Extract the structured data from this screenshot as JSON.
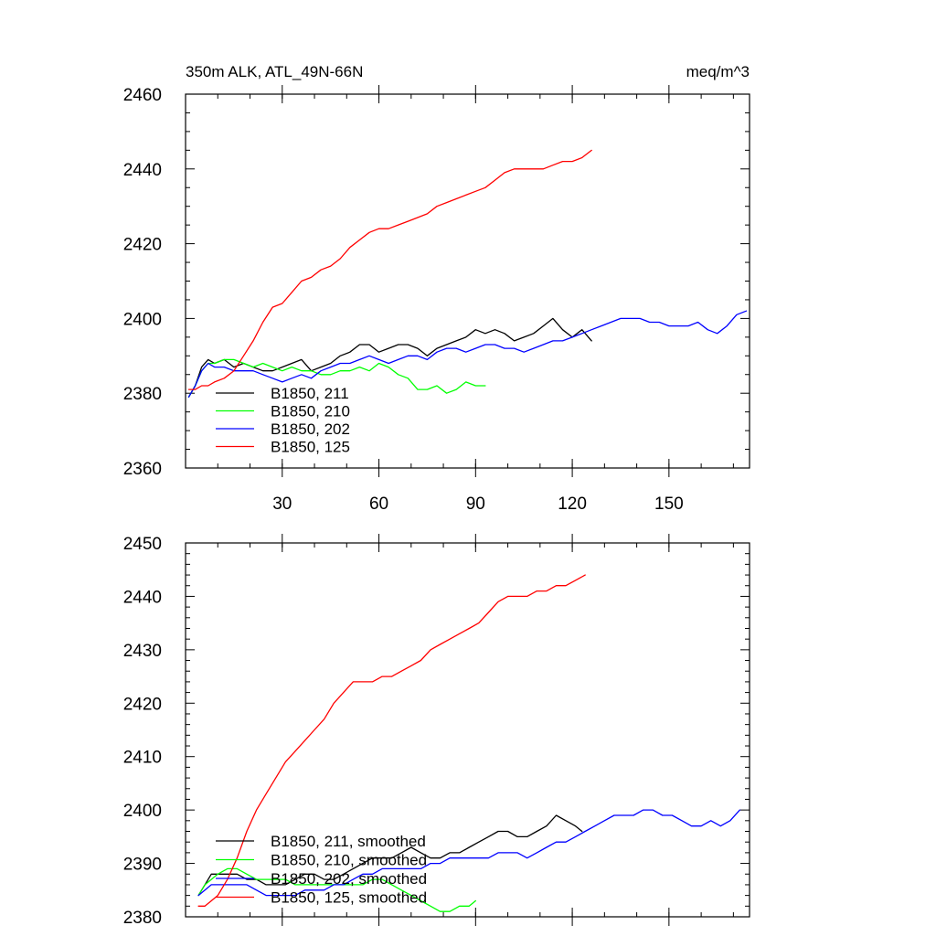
{
  "chart_data": [
    {
      "type": "line",
      "title": "350m ALK, ATL_49N-66N",
      "title_right": "meq/m^3",
      "xlabel": "",
      "ylabel": "",
      "xlim": [
        0,
        175
      ],
      "ylim": [
        2360,
        2460
      ],
      "xticks": [
        30,
        60,
        90,
        120,
        150
      ],
      "yticks": [
        2360,
        2380,
        2400,
        2420,
        2440,
        2460
      ],
      "legend_position": "bottom-left",
      "series": [
        {
          "name": "B1850, 211",
          "color": "#000000",
          "x": [
            1,
            3,
            5,
            7,
            9,
            12,
            15,
            18,
            21,
            24,
            27,
            30,
            33,
            36,
            39,
            42,
            45,
            48,
            51,
            54,
            57,
            60,
            63,
            66,
            69,
            72,
            75,
            78,
            81,
            84,
            87,
            90,
            93,
            96,
            99,
            102,
            105,
            108,
            111,
            114,
            117,
            120,
            123,
            126
          ],
          "y": [
            2379,
            2382,
            2387,
            2389,
            2388,
            2389,
            2387,
            2388,
            2387,
            2386,
            2386,
            2387,
            2388,
            2389,
            2386,
            2387,
            2388,
            2390,
            2391,
            2393,
            2393,
            2391,
            2392,
            2393,
            2393,
            2392,
            2390,
            2392,
            2393,
            2394,
            2395,
            2397,
            2396,
            2397,
            2396,
            2394,
            2395,
            2396,
            2398,
            2400,
            2397,
            2395,
            2397,
            2394
          ]
        },
        {
          "name": "B1850, 210",
          "color": "#00ff00",
          "x": [
            1,
            3,
            5,
            7,
            9,
            12,
            15,
            18,
            21,
            24,
            27,
            30,
            33,
            36,
            39,
            42,
            45,
            48,
            51,
            54,
            57,
            60,
            63,
            66,
            69,
            72,
            75,
            78,
            81,
            84,
            87,
            90,
            93
          ],
          "y": [
            2379,
            2382,
            2386,
            2388,
            2388,
            2389,
            2389,
            2388,
            2387,
            2388,
            2387,
            2386,
            2387,
            2386,
            2386,
            2385,
            2385,
            2386,
            2386,
            2387,
            2386,
            2388,
            2387,
            2385,
            2384,
            2381,
            2381,
            2382,
            2380,
            2381,
            2383,
            2382,
            2382
          ]
        },
        {
          "name": "B1850, 202",
          "color": "#0000ff",
          "x": [
            1,
            3,
            5,
            7,
            9,
            12,
            15,
            18,
            21,
            24,
            27,
            30,
            33,
            36,
            39,
            42,
            45,
            48,
            51,
            54,
            57,
            60,
            63,
            66,
            69,
            72,
            75,
            78,
            81,
            84,
            87,
            90,
            93,
            96,
            99,
            102,
            105,
            108,
            111,
            114,
            117,
            120,
            123,
            126,
            129,
            132,
            135,
            138,
            141,
            144,
            147,
            150,
            153,
            156,
            159,
            162,
            165,
            168,
            171,
            174
          ],
          "y": [
            2379,
            2382,
            2386,
            2388,
            2387,
            2387,
            2386,
            2386,
            2386,
            2385,
            2384,
            2383,
            2384,
            2385,
            2384,
            2386,
            2387,
            2388,
            2388,
            2389,
            2390,
            2389,
            2388,
            2389,
            2390,
            2390,
            2389,
            2391,
            2392,
            2392,
            2391,
            2392,
            2393,
            2393,
            2392,
            2392,
            2391,
            2392,
            2393,
            2394,
            2394,
            2395,
            2396,
            2397,
            2398,
            2399,
            2400,
            2400,
            2400,
            2399,
            2399,
            2398,
            2398,
            2398,
            2399,
            2397,
            2396,
            2398,
            2401,
            2402
          ]
        },
        {
          "name": "B1850, 125",
          "color": "#ff0000",
          "x": [
            1,
            3,
            5,
            7,
            9,
            12,
            15,
            18,
            21,
            24,
            27,
            30,
            33,
            36,
            39,
            42,
            45,
            48,
            51,
            54,
            57,
            60,
            63,
            66,
            69,
            72,
            75,
            78,
            81,
            84,
            87,
            90,
            93,
            96,
            99,
            102,
            105,
            108,
            111,
            114,
            117,
            120,
            123,
            126
          ],
          "y": [
            2381,
            2381,
            2382,
            2382,
            2383,
            2384,
            2386,
            2390,
            2394,
            2399,
            2403,
            2404,
            2407,
            2410,
            2411,
            2413,
            2414,
            2416,
            2419,
            2421,
            2423,
            2424,
            2424,
            2425,
            2426,
            2427,
            2428,
            2430,
            2431,
            2432,
            2433,
            2434,
            2435,
            2437,
            2439,
            2440,
            2440,
            2440,
            2440,
            2441,
            2442,
            2442,
            2443,
            2445
          ]
        }
      ]
    },
    {
      "type": "line",
      "title": "",
      "xlabel": "",
      "ylabel": "",
      "xlim": [
        0,
        175
      ],
      "ylim": [
        2380,
        2450
      ],
      "xticks": [
        30,
        60,
        90,
        120,
        150
      ],
      "yticks": [
        2380,
        2390,
        2400,
        2410,
        2420,
        2430,
        2440,
        2450
      ],
      "legend_position": "bottom-left",
      "series": [
        {
          "name": "B1850, 211, smoothed",
          "color": "#000000",
          "x": [
            4,
            6,
            8,
            10,
            13,
            16,
            19,
            22,
            25,
            28,
            31,
            34,
            37,
            40,
            43,
            46,
            49,
            52,
            55,
            58,
            61,
            64,
            67,
            70,
            73,
            76,
            79,
            82,
            85,
            88,
            91,
            94,
            97,
            100,
            103,
            106,
            109,
            112,
            115,
            118,
            121,
            123
          ],
          "y": [
            2384,
            2386,
            2388,
            2388,
            2388,
            2388,
            2387,
            2387,
            2386,
            2386,
            2386,
            2387,
            2388,
            2388,
            2387,
            2387,
            2388,
            2389,
            2390,
            2391,
            2391,
            2391,
            2392,
            2393,
            2392,
            2391,
            2391,
            2392,
            2392,
            2393,
            2394,
            2395,
            2396,
            2396,
            2395,
            2395,
            2396,
            2397,
            2399,
            2398,
            2397,
            2396
          ]
        },
        {
          "name": "B1850, 210, smoothed",
          "color": "#00ff00",
          "x": [
            4,
            6,
            8,
            10,
            13,
            16,
            19,
            22,
            25,
            28,
            31,
            34,
            37,
            40,
            43,
            46,
            49,
            52,
            55,
            58,
            61,
            64,
            67,
            70,
            73,
            76,
            79,
            82,
            85,
            88,
            90
          ],
          "y": [
            2384,
            2386,
            2387,
            2388,
            2389,
            2389,
            2388,
            2387,
            2387,
            2387,
            2387,
            2386,
            2386,
            2386,
            2386,
            2386,
            2386,
            2386,
            2386,
            2387,
            2387,
            2386,
            2385,
            2384,
            2383,
            2382,
            2381,
            2381,
            2382,
            2382,
            2383
          ]
        },
        {
          "name": "B1850, 202, smoothed",
          "color": "#0000ff",
          "x": [
            4,
            6,
            8,
            10,
            13,
            16,
            19,
            22,
            25,
            28,
            31,
            34,
            37,
            40,
            43,
            46,
            49,
            52,
            55,
            58,
            61,
            64,
            67,
            70,
            73,
            76,
            79,
            82,
            85,
            88,
            91,
            94,
            97,
            100,
            103,
            106,
            109,
            112,
            115,
            118,
            121,
            124,
            127,
            130,
            133,
            136,
            139,
            142,
            145,
            148,
            151,
            154,
            157,
            160,
            163,
            166,
            169,
            172
          ],
          "y": [
            2384,
            2385,
            2386,
            2386,
            2386,
            2386,
            2386,
            2385,
            2384,
            2384,
            2384,
            2384,
            2385,
            2385,
            2385,
            2386,
            2386,
            2387,
            2388,
            2388,
            2389,
            2389,
            2389,
            2389,
            2389,
            2390,
            2390,
            2391,
            2391,
            2391,
            2391,
            2391,
            2392,
            2392,
            2392,
            2391,
            2392,
            2393,
            2394,
            2394,
            2395,
            2396,
            2397,
            2398,
            2399,
            2399,
            2399,
            2400,
            2400,
            2399,
            2399,
            2398,
            2397,
            2397,
            2398,
            2397,
            2398,
            2400
          ]
        },
        {
          "name": "B1850, 125, smoothed",
          "color": "#ff0000",
          "x": [
            4,
            6,
            8,
            10,
            13,
            16,
            19,
            22,
            25,
            28,
            31,
            34,
            37,
            40,
            43,
            46,
            49,
            52,
            55,
            58,
            61,
            64,
            67,
            70,
            73,
            76,
            79,
            82,
            85,
            88,
            91,
            94,
            97,
            100,
            103,
            106,
            109,
            112,
            115,
            118,
            121,
            124
          ],
          "y": [
            2382,
            2382,
            2383,
            2384,
            2387,
            2391,
            2396,
            2400,
            2403,
            2406,
            2409,
            2411,
            2413,
            2415,
            2417,
            2420,
            2422,
            2424,
            2424,
            2424,
            2425,
            2425,
            2426,
            2427,
            2428,
            2430,
            2431,
            2432,
            2433,
            2434,
            2435,
            2437,
            2439,
            2440,
            2440,
            2440,
            2441,
            2441,
            2442,
            2442,
            2443,
            2444
          ]
        }
      ]
    }
  ]
}
